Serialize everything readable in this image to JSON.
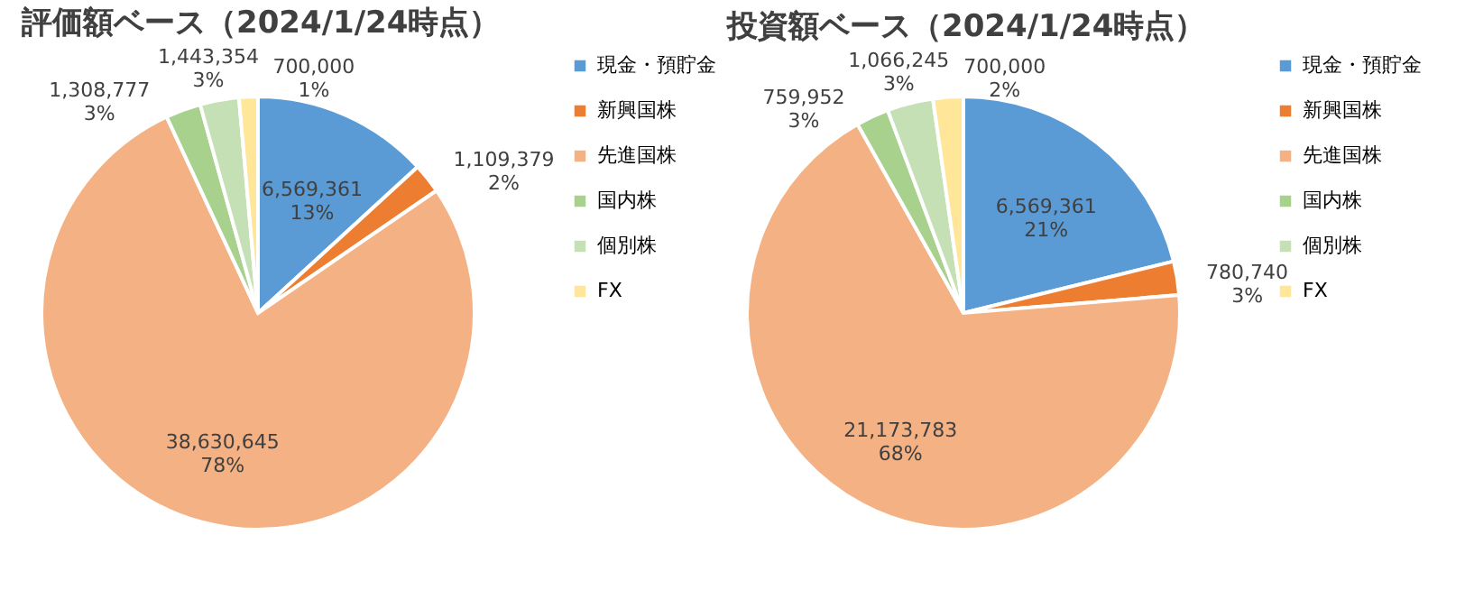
{
  "chart_data": [
    {
      "type": "pie",
      "title": "評価額ベース（2024/1/24時点）",
      "categories": [
        "現金・預貯金",
        "新興国株",
        "先進国株",
        "国内株",
        "個別株",
        "FX"
      ],
      "values": [
        6569361,
        1109379,
        38630645,
        1308777,
        1443354,
        700000
      ],
      "colors": [
        "#5b9bd5",
        "#ed7d31",
        "#f4b183",
        "#a9d18e",
        "#c5e0b4",
        "#ffe699"
      ],
      "value_labels": [
        "6,569,361\n13%",
        "1,109,379\n2%",
        "38,630,645\n78%",
        "1,308,777\n3%",
        "1,443,354\n3%",
        "700,000\n1%"
      ],
      "legend": "right"
    },
    {
      "type": "pie",
      "title": "投資額ベース（2024/1/24時点）",
      "categories": [
        "現金・預貯金",
        "新興国株",
        "先進国株",
        "国内株",
        "個別株",
        "FX"
      ],
      "values": [
        6569361,
        780740,
        21173783,
        759952,
        1066245,
        700000
      ],
      "colors": [
        "#5b9bd5",
        "#ed7d31",
        "#f4b183",
        "#a9d18e",
        "#c5e0b4",
        "#ffe699"
      ],
      "value_labels": [
        "6,569,361\n21%",
        "780,740\n3%",
        "21,173,783\n68%",
        "759,952\n3%",
        "1,066,245\n3%",
        "700,000\n2%"
      ],
      "legend": "right"
    }
  ]
}
